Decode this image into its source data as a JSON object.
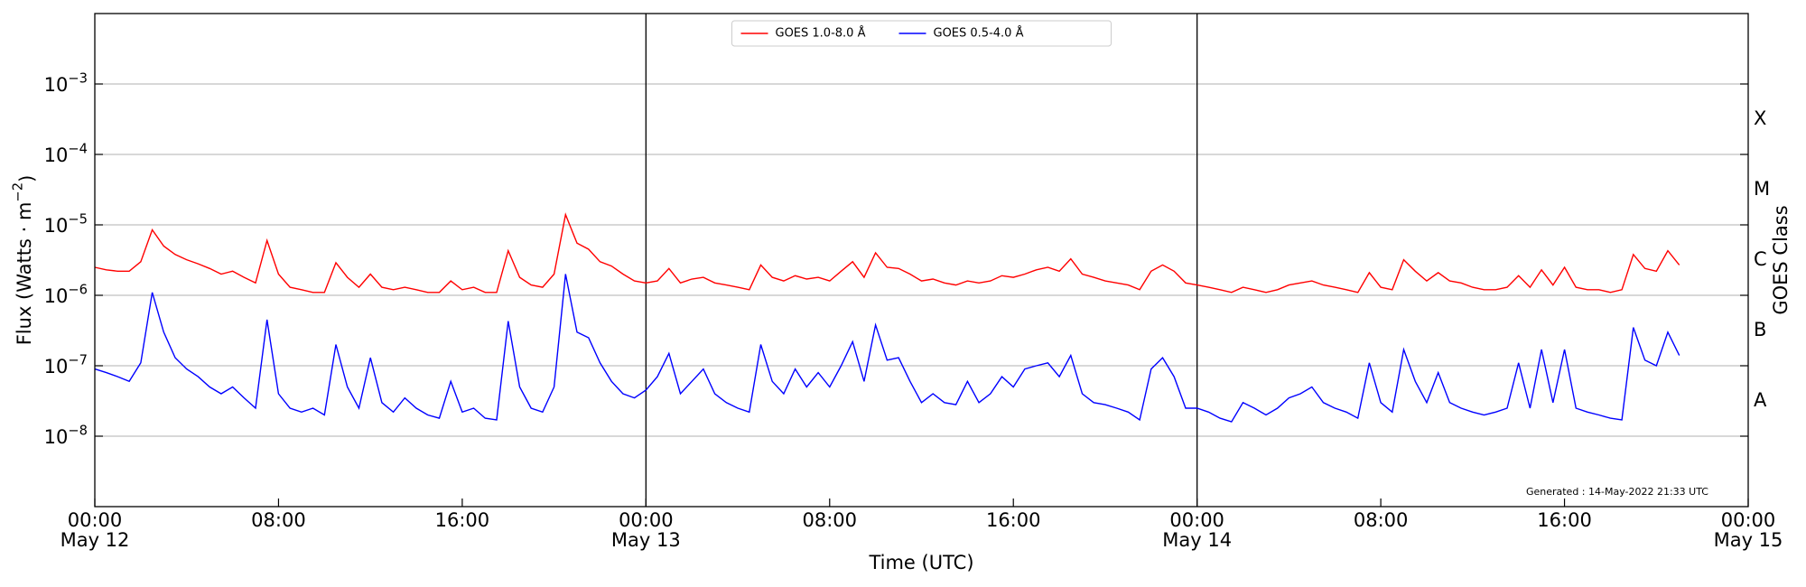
{
  "chart_data": {
    "type": "line",
    "xlabel": "Time (UTC)",
    "ylabel": "Flux (Watts · m−2)",
    "y2label": "GOES Class",
    "annotation": "Generated : 14-May-2022 21:33 UTC",
    "log_y": true,
    "grid": true,
    "legend": "upper center",
    "xlim": [
      0,
      72
    ],
    "xticks": [
      {
        "value": 0,
        "label": "00:00",
        "date": "May 12"
      },
      {
        "value": 8,
        "label": "08:00"
      },
      {
        "value": 16,
        "label": "16:00"
      },
      {
        "value": 24,
        "label": "00:00",
        "date": "May 13"
      },
      {
        "value": 32,
        "label": "08:00"
      },
      {
        "value": 40,
        "label": "16:00"
      },
      {
        "value": 48,
        "label": "00:00",
        "date": "May 14"
      },
      {
        "value": 56,
        "label": "08:00"
      },
      {
        "value": 64,
        "label": "16:00"
      },
      {
        "value": 72,
        "label": "00:00",
        "date": "May 15"
      }
    ],
    "vlines": [
      24,
      48
    ],
    "ylim": [
      1e-09,
      0.01
    ],
    "yticks": [
      {
        "value": 1e-08,
        "label": "10−8"
      },
      {
        "value": 1e-07,
        "label": "10−7"
      },
      {
        "value": 1e-06,
        "label": "10−6"
      },
      {
        "value": 1e-05,
        "label": "10−5"
      },
      {
        "value": 0.0001,
        "label": "10−4"
      },
      {
        "value": 0.001,
        "label": "10−3"
      }
    ],
    "y2lim": [
      1e-09,
      0.01
    ],
    "y2ticks": [
      {
        "value": 3.16e-08,
        "label": "A"
      },
      {
        "value": 3.16e-07,
        "label": "B"
      },
      {
        "value": 3.16e-06,
        "label": "C"
      },
      {
        "value": 3.16e-05,
        "label": "M"
      },
      {
        "value": 0.000316,
        "label": "X"
      }
    ],
    "x": [
      0,
      0.5,
      1,
      1.5,
      2,
      2.5,
      3,
      3.5,
      4,
      4.5,
      5,
      5.5,
      6,
      6.5,
      7,
      7.5,
      8,
      8.5,
      9,
      9.5,
      10,
      10.5,
      11,
      11.5,
      12,
      12.5,
      13,
      13.5,
      14,
      14.5,
      15,
      15.5,
      16,
      16.5,
      17,
      17.5,
      18,
      18.5,
      19,
      19.5,
      20,
      20.5,
      21,
      21.5,
      22,
      22.5,
      23,
      23.5,
      24,
      24.5,
      25,
      25.5,
      26,
      26.5,
      27,
      27.5,
      28,
      28.5,
      29,
      29.5,
      30,
      30.5,
      31,
      31.5,
      32,
      32.5,
      33,
      33.5,
      34,
      34.5,
      35,
      35.5,
      36,
      36.5,
      37,
      37.5,
      38,
      38.5,
      39,
      39.5,
      40,
      40.5,
      41,
      41.5,
      42,
      42.5,
      43,
      43.5,
      44,
      44.5,
      45,
      45.5,
      46,
      46.5,
      47,
      47.5,
      48,
      48.5,
      49,
      49.5,
      50,
      50.5,
      51,
      51.5,
      52,
      52.5,
      53,
      53.5,
      54,
      54.5,
      55,
      55.5,
      56,
      56.5,
      57,
      57.5,
      58,
      58.5,
      59,
      59.5,
      60,
      60.5,
      61,
      61.5,
      62,
      62.5,
      63,
      63.5,
      64,
      64.5,
      65,
      65.5,
      66,
      66.5,
      67,
      67.5,
      68,
      68.5,
      69
    ],
    "series": [
      {
        "name": "GOES 1.0-8.0 Å",
        "color": "#ff0000",
        "values": [
          2.5e-06,
          2.3e-06,
          2.2e-06,
          2.2e-06,
          3e-06,
          8.5e-06,
          5e-06,
          3.8e-06,
          3.2e-06,
          2.8e-06,
          2.4e-06,
          2e-06,
          2.2e-06,
          1.8e-06,
          1.5e-06,
          6e-06,
          2e-06,
          1.3e-06,
          1.2e-06,
          1.1e-06,
          1.1e-06,
          2.9e-06,
          1.8e-06,
          1.3e-06,
          2e-06,
          1.3e-06,
          1.2e-06,
          1.3e-06,
          1.2e-06,
          1.1e-06,
          1.1e-06,
          1.6e-06,
          1.2e-06,
          1.3e-06,
          1.1e-06,
          1.1e-06,
          4.3e-06,
          1.8e-06,
          1.4e-06,
          1.3e-06,
          2e-06,
          1.4e-05,
          5.5e-06,
          4.5e-06,
          3e-06,
          2.6e-06,
          2e-06,
          1.6e-06,
          1.5e-06,
          1.6e-06,
          2.4e-06,
          1.5e-06,
          1.7e-06,
          1.8e-06,
          1.5e-06,
          1.4e-06,
          1.3e-06,
          1.2e-06,
          2.7e-06,
          1.8e-06,
          1.6e-06,
          1.9e-06,
          1.7e-06,
          1.8e-06,
          1.6e-06,
          2.2e-06,
          3e-06,
          1.8e-06,
          4e-06,
          2.5e-06,
          2.4e-06,
          2e-06,
          1.6e-06,
          1.7e-06,
          1.5e-06,
          1.4e-06,
          1.6e-06,
          1.5e-06,
          1.6e-06,
          1.9e-06,
          1.8e-06,
          2e-06,
          2.3e-06,
          2.5e-06,
          2.2e-06,
          3.3e-06,
          2e-06,
          1.8e-06,
          1.6e-06,
          1.5e-06,
          1.4e-06,
          1.2e-06,
          2.2e-06,
          2.7e-06,
          2.2e-06,
          1.5e-06,
          1.4e-06,
          1.3e-06,
          1.2e-06,
          1.1e-06,
          1.3e-06,
          1.2e-06,
          1.1e-06,
          1.2e-06,
          1.4e-06,
          1.5e-06,
          1.6e-06,
          1.4e-06,
          1.3e-06,
          1.2e-06,
          1.1e-06,
          2.1e-06,
          1.3e-06,
          1.2e-06,
          3.2e-06,
          2.2e-06,
          1.6e-06,
          2.1e-06,
          1.6e-06,
          1.5e-06,
          1.3e-06,
          1.2e-06,
          1.2e-06,
          1.3e-06,
          1.9e-06,
          1.3e-06,
          2.3e-06,
          1.4e-06,
          2.5e-06,
          1.3e-06,
          1.2e-06,
          1.2e-06,
          1.1e-06,
          1.2e-06,
          3.8e-06,
          2.4e-06,
          2.2e-06,
          4.3e-06,
          2.7e-06
        ]
      },
      {
        "name": "GOES 0.5-4.0 Å",
        "color": "#0000ff",
        "values": [
          9e-08,
          8e-08,
          7e-08,
          6e-08,
          1.1e-07,
          1.1e-06,
          3e-07,
          1.3e-07,
          9e-08,
          7e-08,
          5e-08,
          4e-08,
          5e-08,
          3.5e-08,
          2.5e-08,
          4.5e-07,
          4e-08,
          2.5e-08,
          2.2e-08,
          2.5e-08,
          2e-08,
          2e-07,
          5e-08,
          2.5e-08,
          1.3e-07,
          3e-08,
          2.2e-08,
          3.5e-08,
          2.5e-08,
          2e-08,
          1.8e-08,
          6e-08,
          2.2e-08,
          2.5e-08,
          1.8e-08,
          1.7e-08,
          4.3e-07,
          5e-08,
          2.5e-08,
          2.2e-08,
          5e-08,
          2e-06,
          3e-07,
          2.5e-07,
          1.1e-07,
          6e-08,
          4e-08,
          3.5e-08,
          4.5e-08,
          7e-08,
          1.5e-07,
          4e-08,
          6e-08,
          9e-08,
          4e-08,
          3e-08,
          2.5e-08,
          2.2e-08,
          2e-07,
          6e-08,
          4e-08,
          9e-08,
          5e-08,
          8e-08,
          5e-08,
          1e-07,
          2.2e-07,
          6e-08,
          3.8e-07,
          1.2e-07,
          1.3e-07,
          6e-08,
          3e-08,
          4e-08,
          3e-08,
          2.8e-08,
          6e-08,
          3e-08,
          4e-08,
          7e-08,
          5e-08,
          9e-08,
          1e-07,
          1.1e-07,
          7e-08,
          1.4e-07,
          4e-08,
          3e-08,
          2.8e-08,
          2.5e-08,
          2.2e-08,
          1.7e-08,
          9e-08,
          1.3e-07,
          7e-08,
          2.5e-08,
          2.5e-08,
          2.2e-08,
          1.8e-08,
          1.6e-08,
          3e-08,
          2.5e-08,
          2e-08,
          2.5e-08,
          3.5e-08,
          4e-08,
          5e-08,
          3e-08,
          2.5e-08,
          2.2e-08,
          1.8e-08,
          1.1e-07,
          3e-08,
          2.2e-08,
          1.7e-07,
          6e-08,
          3e-08,
          8e-08,
          3e-08,
          2.5e-08,
          2.2e-08,
          2e-08,
          2.2e-08,
          2.5e-08,
          1.1e-07,
          2.5e-08,
          1.7e-07,
          3e-08,
          1.7e-07,
          2.5e-08,
          2.2e-08,
          2e-08,
          1.8e-08,
          1.7e-08,
          3.5e-07,
          1.2e-07,
          1e-07,
          3e-07,
          1.4e-07
        ]
      }
    ]
  }
}
